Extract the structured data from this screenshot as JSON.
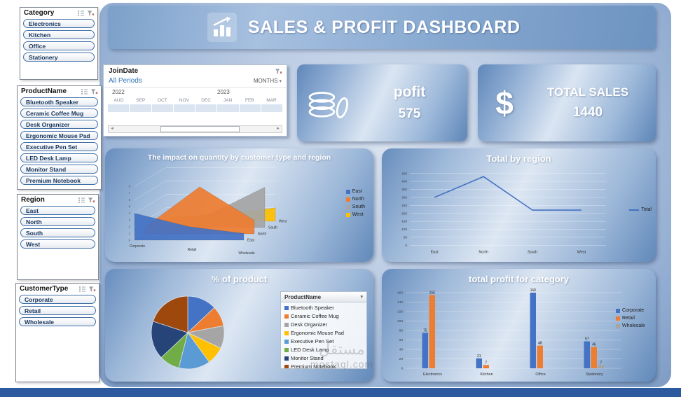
{
  "header": {
    "title": "SALES & PROFIT DASHBOARD"
  },
  "slicers": {
    "category": {
      "title": "Category",
      "items": [
        "Electronics",
        "Kitchen",
        "Office",
        "Stationery"
      ]
    },
    "product": {
      "title": "ProductName",
      "items": [
        "Bluetooth Speaker",
        "Ceramic Coffee Mug",
        "Desk Organizer",
        "Ergonomic Mouse Pad",
        "Executive Pen Set",
        "LED Desk Lamp",
        "Monitor Stand",
        "Premium Notebook"
      ]
    },
    "region": {
      "title": "Region",
      "items": [
        "East",
        "North",
        "South",
        "West"
      ]
    },
    "customer": {
      "title": "CustomerType",
      "items": [
        "Corporate",
        "Retail",
        "Wholesale"
      ]
    }
  },
  "timeline": {
    "title": "JoinDate",
    "period_label": "All Periods",
    "granularity": "MONTHS",
    "years": [
      "2022",
      "2023"
    ],
    "months": [
      "AUG",
      "SEP",
      "OCT",
      "NOV",
      "DEC",
      "JAN",
      "FEB",
      "MAR"
    ]
  },
  "kpis": {
    "profit": {
      "label": "pofit",
      "value": "575"
    },
    "sales": {
      "label": "TOTAL SALES",
      "value": "1440"
    }
  },
  "watermark": {
    "arabic": "مستقل",
    "text": "mostaql.com"
  },
  "colors": {
    "accent_blue": "#4472c4",
    "accent_orange": "#ed7d31",
    "accent_gray": "#a5a5a5",
    "bottom_bar": "#2d5a9e"
  },
  "chart_data": [
    {
      "id": "area3d",
      "type": "area",
      "title": "The impact on quantity by customer type and region",
      "categories": [
        "Corporate",
        "Retail",
        "Wholesale"
      ],
      "series": [
        {
          "name": "East",
          "color": "#4472c4",
          "values": [
            4,
            2,
            1
          ]
        },
        {
          "name": "North",
          "color": "#ed7d31",
          "values": [
            1,
            7,
            2
          ]
        },
        {
          "name": "South",
          "color": "#a5a5a5",
          "values": [
            1,
            2,
            6
          ]
        },
        {
          "name": "West",
          "color": "#ffc000",
          "values": [
            0.5,
            1,
            2
          ]
        }
      ],
      "ylim": [
        0,
        8
      ],
      "grid": true,
      "legend_position": "right"
    },
    {
      "id": "line-region",
      "type": "line",
      "title": "Total by region",
      "categories": [
        "East",
        "North",
        "South",
        "West"
      ],
      "series": [
        {
          "name": "Total",
          "color": "#4472c4",
          "values": [
            300,
            430,
            220,
            220
          ]
        }
      ],
      "ylim": [
        0,
        450
      ],
      "ytick": 50,
      "grid": true,
      "legend_position": "right"
    },
    {
      "id": "pie-product",
      "type": "pie",
      "title": "% of product",
      "legend_title": "ProductName",
      "labels": [
        "Bluetooth Speaker",
        "Ceramic Coffee Mug",
        "Desk Organizer",
        "Ergonomic Mouse Pad",
        "Executive Pen Set",
        "LED Desk Lamp",
        "Monitor Stand",
        "Premium Notebook"
      ],
      "values": [
        13,
        9,
        10,
        8,
        14,
        9,
        17,
        20
      ],
      "colors": [
        "#4472c4",
        "#ed7d31",
        "#a5a5a5",
        "#ffc000",
        "#5b9bd5",
        "#70ad47",
        "#264478",
        "#9e480e"
      ],
      "legend_position": "right"
    },
    {
      "id": "bar-profit",
      "type": "bar",
      "title": "total profit for category",
      "categories": [
        "Electronics",
        "Kitchen",
        "Office",
        "Stationery"
      ],
      "series": [
        {
          "name": "Corporate",
          "color": "#4472c4",
          "values": [
            75,
            21,
            160,
            57
          ]
        },
        {
          "name": "Retail",
          "color": "#ed7d31",
          "values": [
            155,
            7,
            48,
            45
          ]
        },
        {
          "name": "Wholesale",
          "color": "#a5a5a5",
          "values": [
            0,
            0,
            0,
            7
          ]
        }
      ],
      "ylim": [
        0,
        160
      ],
      "ytick": 20,
      "data_labels": true,
      "grid": true,
      "legend_position": "right"
    }
  ]
}
